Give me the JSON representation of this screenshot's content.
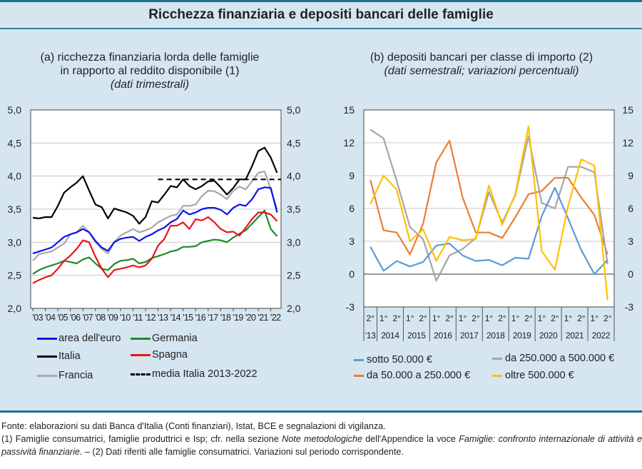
{
  "title": "Ricchezza finanziaria e depositi bancari delle famiglie",
  "footer": {
    "source": "Fonte: elaborazioni su dati Banca d'Italia (Conti finanziari), Istat, BCE e segnalazioni di vigilanza.",
    "note1_a": "(1) Famiglie consumatrici, famiglie produttrici e Isp; cfr. nella sezione ",
    "note1_b": "Note metodologiche",
    "note1_c": " dell'Appendice la voce ",
    "note1_d": "Famiglie: confronto internazionale di attività e passività finanziarie.",
    "note2": " – (2) Dati riferiti alle famiglie consumatrici. Variazioni sul periodo corrispondente."
  },
  "chart_data": [
    {
      "type": "line",
      "title": "(a) ricchezza finanziaria lorda delle famiglie",
      "title_line2": "in rapporto al reddito disponibile (1)",
      "subtitle": "(dati trimestrali)",
      "ylim": [
        2.0,
        5.0
      ],
      "yticks": [
        "2,0",
        "2,5",
        "3,0",
        "3,5",
        "4,0",
        "4,5",
        "5,0"
      ],
      "xtick_labels": [
        "'03",
        "'04",
        "'05",
        "'06",
        "'07",
        "'08",
        "'09",
        "'10",
        "'11",
        "'12",
        "'13",
        "'14",
        "'15",
        "'16",
        "'17",
        "'18",
        "'19",
        "'20",
        "'21",
        "'22"
      ],
      "grid": true,
      "legend_position": "bottom",
      "x": [
        "2003-Q1",
        "2003-Q3",
        "2004-Q1",
        "2004-Q3",
        "2005-Q1",
        "2005-Q3",
        "2006-Q1",
        "2006-Q3",
        "2007-Q1",
        "2007-Q3",
        "2008-Q1",
        "2008-Q3",
        "2009-Q1",
        "2009-Q3",
        "2010-Q1",
        "2010-Q3",
        "2011-Q1",
        "2011-Q3",
        "2012-Q1",
        "2012-Q3",
        "2013-Q1",
        "2013-Q3",
        "2014-Q1",
        "2014-Q3",
        "2015-Q1",
        "2015-Q3",
        "2016-Q1",
        "2016-Q3",
        "2017-Q1",
        "2017-Q3",
        "2018-Q1",
        "2018-Q3",
        "2019-Q1",
        "2019-Q3",
        "2020-Q1",
        "2020-Q3",
        "2021-Q1",
        "2021-Q3",
        "2022-Q1",
        "2022-Q3"
      ],
      "series": [
        {
          "name": "area dell'euro",
          "color": "#0a12f0",
          "values": [
            2.83,
            2.86,
            2.89,
            2.92,
            3.0,
            3.08,
            3.12,
            3.15,
            3.2,
            3.15,
            3.02,
            2.92,
            2.87,
            3.0,
            3.05,
            3.07,
            3.08,
            3.02,
            3.08,
            3.12,
            3.18,
            3.22,
            3.3,
            3.35,
            3.48,
            3.42,
            3.45,
            3.5,
            3.52,
            3.52,
            3.49,
            3.42,
            3.52,
            3.57,
            3.55,
            3.65,
            3.8,
            3.83,
            3.82,
            3.45
          ]
        },
        {
          "name": "Germania",
          "color": "#1e8a2a",
          "values": [
            2.52,
            2.58,
            2.62,
            2.65,
            2.68,
            2.72,
            2.7,
            2.68,
            2.74,
            2.77,
            2.68,
            2.6,
            2.58,
            2.67,
            2.72,
            2.73,
            2.75,
            2.68,
            2.7,
            2.76,
            2.79,
            2.82,
            2.86,
            2.88,
            2.93,
            2.93,
            2.94,
            3.0,
            3.02,
            3.04,
            3.03,
            3.0,
            3.07,
            3.13,
            3.18,
            3.28,
            3.38,
            3.48,
            3.2,
            3.09
          ]
        },
        {
          "name": "Italia",
          "color": "#000000",
          "values": [
            3.37,
            3.36,
            3.38,
            3.38,
            3.55,
            3.75,
            3.83,
            3.9,
            4.0,
            3.78,
            3.57,
            3.53,
            3.36,
            3.51,
            3.48,
            3.45,
            3.4,
            3.28,
            3.38,
            3.62,
            3.6,
            3.72,
            3.85,
            3.83,
            3.95,
            3.85,
            3.8,
            3.85,
            3.92,
            3.93,
            3.83,
            3.72,
            3.82,
            3.95,
            3.95,
            4.15,
            4.38,
            4.43,
            4.28,
            4.05
          ]
        },
        {
          "name": "Spagna",
          "color": "#e8141c",
          "values": [
            2.38,
            2.43,
            2.47,
            2.5,
            2.6,
            2.72,
            2.8,
            2.9,
            3.03,
            3.0,
            2.78,
            2.6,
            2.47,
            2.58,
            2.6,
            2.62,
            2.65,
            2.62,
            2.65,
            2.75,
            2.95,
            3.05,
            3.25,
            3.25,
            3.3,
            3.2,
            3.35,
            3.33,
            3.38,
            3.3,
            3.2,
            3.15,
            3.16,
            3.1,
            3.22,
            3.35,
            3.45,
            3.45,
            3.42,
            3.32
          ]
        },
        {
          "name": "Francia",
          "color": "#a8a8a8",
          "values": [
            2.72,
            2.82,
            2.84,
            2.86,
            2.92,
            2.98,
            3.12,
            3.15,
            3.25,
            3.15,
            3.0,
            2.9,
            2.83,
            3.0,
            3.1,
            3.15,
            3.2,
            3.15,
            3.18,
            3.22,
            3.3,
            3.35,
            3.4,
            3.42,
            3.55,
            3.55,
            3.57,
            3.7,
            3.78,
            3.77,
            3.72,
            3.65,
            3.78,
            3.84,
            3.8,
            3.92,
            4.05,
            4.07,
            3.8,
            3.5
          ]
        },
        {
          "name": "media Italia 2013-2022",
          "color": "#000000",
          "dashed": true,
          "x_range": [
            "2013-Q1",
            "2022-Q4"
          ],
          "value": 3.95
        }
      ]
    },
    {
      "type": "line",
      "title": "(b) depositi bancari per classe di importo (2)",
      "subtitle": "(dati semestrali; variazioni percentuali)",
      "ylim": [
        -3,
        15
      ],
      "yticks": [
        "-3",
        "0",
        "3",
        "6",
        "9",
        "12",
        "15"
      ],
      "grid": true,
      "legend_position": "bottom",
      "period_labels": [
        "2°",
        "1°",
        "2°",
        "1°",
        "2°",
        "1°",
        "2°",
        "1°",
        "2°",
        "1°",
        "2°",
        "1°",
        "2°",
        "1°",
        "2°",
        "1°",
        "2°",
        "1°",
        "2°"
      ],
      "year_labels": [
        "'13",
        "2014",
        "2015",
        "2016",
        "2017",
        "2018",
        "2019",
        "2020",
        "2021",
        "2022"
      ],
      "series": [
        {
          "name": "sotto 50.000 €",
          "color": "#5b9bd5",
          "values": [
            2.5,
            0.3,
            1.2,
            0.7,
            1.1,
            2.6,
            2.8,
            1.7,
            1.2,
            1.3,
            0.8,
            1.5,
            1.4,
            5.3,
            7.9,
            5.1,
            2.2,
            0.0,
            1.3
          ]
        },
        {
          "name": "da 50.000 a 250.000 €",
          "color": "#ed7d31",
          "values": [
            8.6,
            4.0,
            3.8,
            1.8,
            4.6,
            10.2,
            12.2,
            7.0,
            3.8,
            3.8,
            3.3,
            5.2,
            7.3,
            7.6,
            8.8,
            8.8,
            7.0,
            5.4,
            1.8
          ]
        },
        {
          "name": "da 250.000 a 500.000 €",
          "color": "#a5a5a5",
          "values": [
            13.2,
            12.4,
            8.5,
            4.3,
            3.2,
            -0.6,
            1.7,
            2.3,
            3.3,
            7.5,
            4.7,
            7.2,
            12.6,
            6.5,
            6.0,
            9.8,
            9.8,
            9.3,
            0.9
          ]
        },
        {
          "name": "oltre 500.000 €",
          "color": "#ffc000",
          "values": [
            6.4,
            9.0,
            7.7,
            3.0,
            4.1,
            1.2,
            3.4,
            3.1,
            3.2,
            8.1,
            4.5,
            7.3,
            13.5,
            2.1,
            0.4,
            6.2,
            10.5,
            9.9,
            -2.4
          ]
        }
      ]
    }
  ]
}
